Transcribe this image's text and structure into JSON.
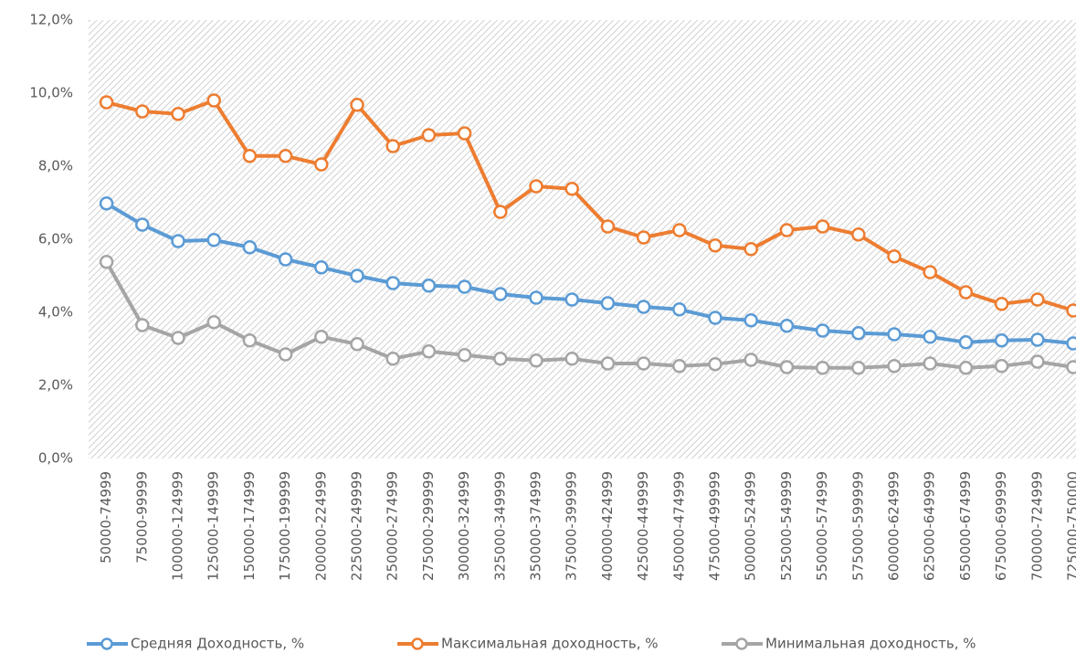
{
  "chart_data": {
    "type": "line",
    "categories": [
      "50000-74999",
      "75000-99999",
      "100000-124999",
      "125000-149999",
      "150000-174999",
      "175000-199999",
      "200000-224999",
      "225000-249999",
      "250000-274999",
      "275000-299999",
      "300000-324999",
      "325000-349999",
      "350000-374999",
      "375000-399999",
      "400000-424999",
      "425000-449999",
      "450000-474999",
      "475000-499999",
      "500000-524999",
      "525000-549999",
      "550000-574999",
      "575000-599999",
      "600000-624999",
      "625000-649999",
      "650000-674999",
      "675000-699999",
      "700000-724999",
      "725000-750000"
    ],
    "series": [
      {
        "name": "Средняя Доходность, %",
        "color": "#5b9bd5",
        "values": [
          6.98,
          6.4,
          5.95,
          5.98,
          5.78,
          5.45,
          5.23,
          5.0,
          4.8,
          4.73,
          4.7,
          4.5,
          4.4,
          4.35,
          4.25,
          4.15,
          4.08,
          3.85,
          3.78,
          3.63,
          3.5,
          3.43,
          3.4,
          3.33,
          3.18,
          3.23,
          3.25,
          3.15
        ]
      },
      {
        "name": "Максимальная доходность, %",
        "color": "#ed7d31",
        "values": [
          9.75,
          9.5,
          9.43,
          9.8,
          8.28,
          8.28,
          8.05,
          9.68,
          8.55,
          8.85,
          8.9,
          6.75,
          7.45,
          7.38,
          6.35,
          6.05,
          6.25,
          5.83,
          5.73,
          6.25,
          6.35,
          6.13,
          5.53,
          5.1,
          4.55,
          4.23,
          4.35,
          4.05
        ]
      },
      {
        "name": "Минимальная доходность, %",
        "color": "#a5a5a5",
        "values": [
          5.38,
          3.65,
          3.3,
          3.73,
          3.23,
          2.85,
          3.33,
          3.13,
          2.73,
          2.93,
          2.83,
          2.73,
          2.68,
          2.73,
          2.6,
          2.6,
          2.53,
          2.58,
          2.7,
          2.5,
          2.48,
          2.48,
          2.53,
          2.6,
          2.48,
          2.53,
          2.65,
          2.5
        ]
      }
    ],
    "ylim": [
      0,
      12
    ],
    "yticks": [
      {
        "value": 0,
        "label": "0,0%"
      },
      {
        "value": 2,
        "label": "2,0%"
      },
      {
        "value": 4,
        "label": "4,0%"
      },
      {
        "value": 6,
        "label": "6,0%"
      },
      {
        "value": 8,
        "label": "8,0%"
      },
      {
        "value": 10,
        "label": "10,0%"
      },
      {
        "value": 12,
        "label": "12,0%"
      }
    ],
    "legend": "bottom"
  }
}
